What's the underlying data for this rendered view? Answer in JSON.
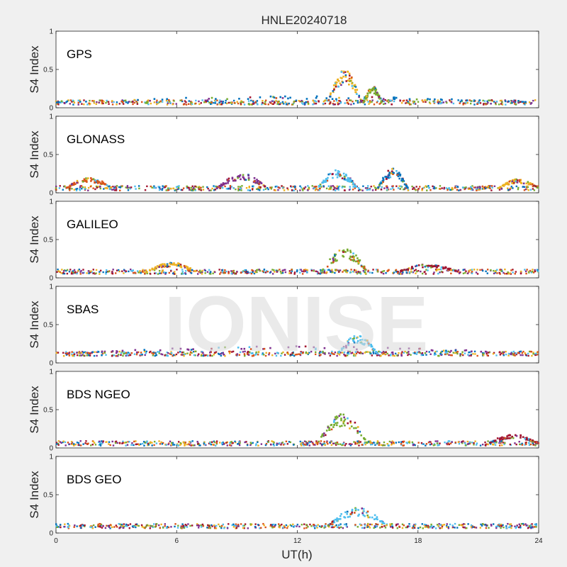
{
  "chart_data": {
    "type": "scatter",
    "title": "HNLE20240718",
    "xlabel": "UT(h)",
    "ylabel": "S4 Index",
    "xlim": [
      0,
      24
    ],
    "ylim": [
      0,
      1
    ],
    "xticks": [
      0,
      6,
      12,
      18,
      24
    ],
    "xtick_labels": [
      "0",
      "6",
      "12",
      "18",
      "24"
    ],
    "yticks": [
      0,
      0.5,
      1
    ],
    "ytick_labels": [
      "0",
      "0.5",
      "1"
    ],
    "grid": false,
    "legend": "none",
    "watermark": "IONISE",
    "series_colors": [
      "#0072BD",
      "#D95319",
      "#EDB120",
      "#7E2F8E",
      "#77AC30",
      "#4DBEEE",
      "#A2142F"
    ],
    "panels": [
      {
        "name": "GPS",
        "baseline": 0.07,
        "events": [
          {
            "x0": 0,
            "x1": 24,
            "peak": 0.15
          },
          {
            "x0": 13.5,
            "x1": 15.2,
            "peak": 0.5
          },
          {
            "x0": 15.3,
            "x1": 16.2,
            "peak": 0.28
          }
        ]
      },
      {
        "name": "GLONASS",
        "baseline": 0.06,
        "events": [
          {
            "x0": 0.5,
            "x1": 2.8,
            "peak": 0.2
          },
          {
            "x0": 8.0,
            "x1": 10.5,
            "peak": 0.25
          },
          {
            "x0": 13.0,
            "x1": 15.0,
            "peak": 0.3
          },
          {
            "x0": 16.0,
            "x1": 17.5,
            "peak": 0.32
          },
          {
            "x0": 22.0,
            "x1": 24.0,
            "peak": 0.18
          }
        ]
      },
      {
        "name": "GALILEO",
        "baseline": 0.08,
        "events": [
          {
            "x0": 4.5,
            "x1": 7.0,
            "peak": 0.2
          },
          {
            "x0": 13.2,
            "x1": 15.5,
            "peak": 0.38
          },
          {
            "x0": 17.0,
            "x1": 20.0,
            "peak": 0.18
          }
        ]
      },
      {
        "name": "SBAS",
        "baseline": 0.12,
        "events": [
          {
            "x0": 0,
            "x1": 24,
            "peak": 0.22
          },
          {
            "x0": 14.0,
            "x1": 16.0,
            "peak": 0.36
          }
        ]
      },
      {
        "name": "BDS NGEO",
        "baseline": 0.06,
        "events": [
          {
            "x0": 13.0,
            "x1": 15.5,
            "peak": 0.45
          },
          {
            "x0": 21.5,
            "x1": 24.0,
            "peak": 0.18
          }
        ]
      },
      {
        "name": "BDS GEO",
        "baseline": 0.09,
        "events": [
          {
            "x0": 13.5,
            "x1": 16.5,
            "peak": 0.33
          }
        ]
      }
    ]
  }
}
